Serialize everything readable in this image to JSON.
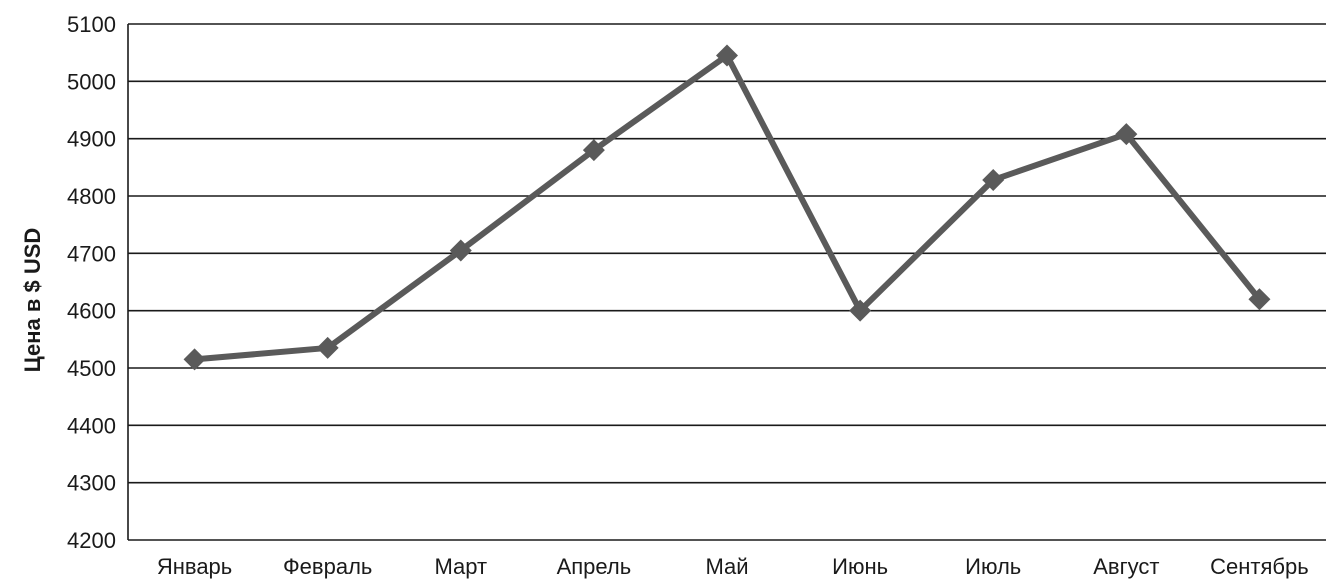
{
  "chart_data": {
    "type": "line",
    "title": "",
    "xlabel": "",
    "ylabel": "Цена в $ USD",
    "categories": [
      "Январь",
      "Февраль",
      "Март",
      "Апрель",
      "Май",
      "Июнь",
      "Июль",
      "Август",
      "Сентябрь"
    ],
    "series": [
      {
        "values": [
          4515,
          4535,
          4705,
          4880,
          5045,
          4600,
          4828,
          4908,
          4620
        ],
        "color": "#5a5a5a",
        "marker": "diamond"
      }
    ],
    "ylim": [
      4200,
      5100
    ],
    "yticks": [
      4200,
      4300,
      4400,
      4500,
      4600,
      4700,
      4800,
      4900,
      5000,
      5100
    ],
    "grid": true,
    "legend": "none"
  }
}
